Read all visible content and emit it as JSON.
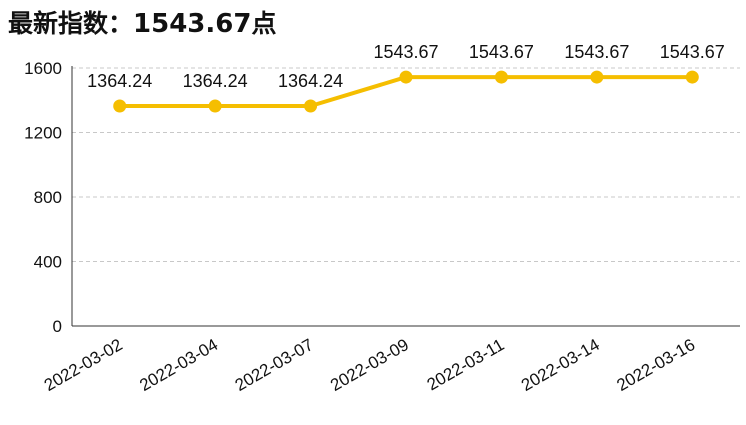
{
  "title": {
    "prefix": "最新指数：",
    "value": "1543.67",
    "suffix": "点"
  },
  "colors": {
    "line": "#F5BE00",
    "grid": "#C8C8C8",
    "axis": "#333333"
  },
  "chart_data": {
    "type": "line",
    "categories": [
      "2022-03-02",
      "2022-03-04",
      "2022-03-07",
      "2022-03-09",
      "2022-03-11",
      "2022-03-14",
      "2022-03-16"
    ],
    "series": [
      {
        "values": [
          1364.24,
          1364.24,
          1364.24,
          1543.67,
          1543.67,
          1543.67,
          1543.67
        ]
      }
    ],
    "data_labels": [
      "1364.24",
      "1364.24",
      "1364.24",
      "1543.67",
      "1543.67",
      "1543.67",
      "1543.67"
    ],
    "yticks": [
      0,
      400,
      800,
      1200,
      1600
    ],
    "ylim": [
      0,
      1600
    ],
    "grid": true,
    "legend": "none",
    "xlabel": "",
    "ylabel": ""
  }
}
